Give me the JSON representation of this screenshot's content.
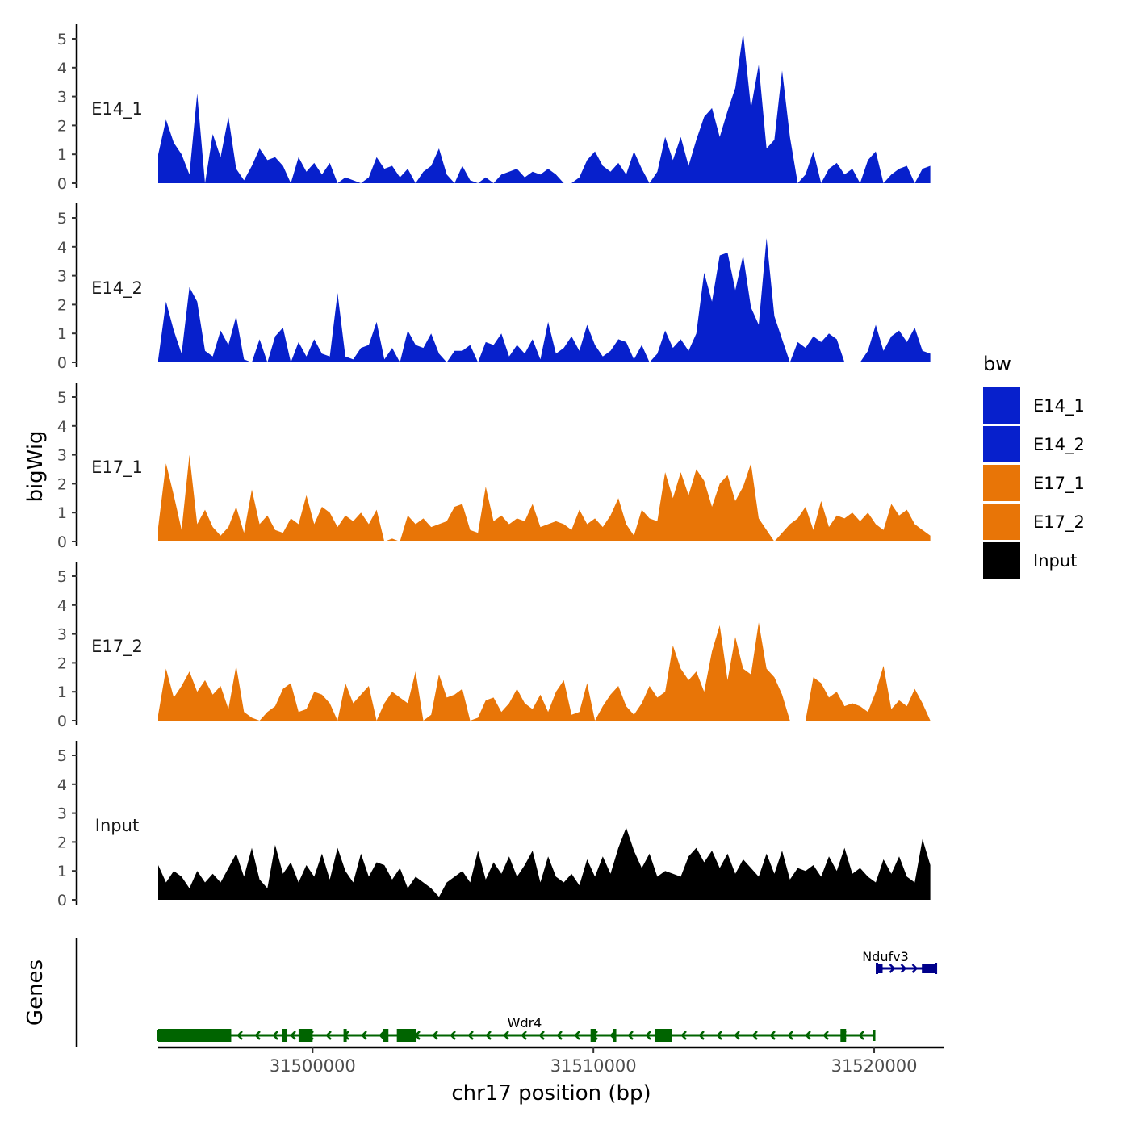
{
  "chart_data": {
    "type": "area",
    "title": "",
    "xlabel": "chr17 position (bp)",
    "ylabel": "bigWig",
    "genes_label": "Genes",
    "xlim": [
      31494500,
      31522500
    ],
    "ylim": [
      0,
      5.3
    ],
    "xticks": [
      31500000,
      31510000,
      31520000
    ],
    "xtick_labels": [
      "31500000",
      "31510000",
      "31520000"
    ],
    "yticks": [
      0,
      1,
      2,
      3,
      4,
      5
    ],
    "ytick_labels": [
      "0",
      "1",
      "2",
      "3",
      "4",
      "5"
    ],
    "legend": {
      "title": "bw",
      "position": "right",
      "entries": [
        {
          "label": "E14_1",
          "color": "#0720CC"
        },
        {
          "label": "E14_2",
          "color": "#0720CC"
        },
        {
          "label": "E17_1",
          "color": "#E87507"
        },
        {
          "label": "E17_2",
          "color": "#E87507"
        },
        {
          "label": "Input",
          "color": "#000000"
        }
      ]
    },
    "tracks": [
      {
        "name": "E14_1",
        "color": "#0720CC",
        "x_start": 31494500,
        "x_end": 31522000,
        "values": [
          1.0,
          2.2,
          1.4,
          1.0,
          0.3,
          3.1,
          0.0,
          1.7,
          0.9,
          2.3,
          0.5,
          0.1,
          0.6,
          1.2,
          0.8,
          0.9,
          0.6,
          0.0,
          0.9,
          0.4,
          0.7,
          0.3,
          0.7,
          0.0,
          0.2,
          0.1,
          0.0,
          0.2,
          0.9,
          0.5,
          0.6,
          0.2,
          0.5,
          0.0,
          0.4,
          0.6,
          1.2,
          0.3,
          0.0,
          0.6,
          0.1,
          0.0,
          0.2,
          0.0,
          0.3,
          0.4,
          0.5,
          0.2,
          0.4,
          0.3,
          0.5,
          0.3,
          0.0,
          0.0,
          0.2,
          0.8,
          1.1,
          0.6,
          0.4,
          0.7,
          0.3,
          1.1,
          0.5,
          0.0,
          0.4,
          1.6,
          0.8,
          1.6,
          0.6,
          1.5,
          2.3,
          2.6,
          1.6,
          2.5,
          3.3,
          5.2,
          2.6,
          4.1,
          1.2,
          1.5,
          3.9,
          1.6,
          0.0,
          0.3,
          1.1,
          0.0,
          0.5,
          0.7,
          0.3,
          0.5,
          0.0,
          0.8,
          1.1,
          0.0,
          0.3,
          0.5,
          0.6,
          0.0,
          0.5,
          0.6
        ]
      },
      {
        "name": "E14_2",
        "color": "#0720CC",
        "x_start": 31494500,
        "x_end": 31522000,
        "values": [
          0.1,
          2.1,
          1.1,
          0.3,
          2.6,
          2.1,
          0.4,
          0.2,
          1.1,
          0.6,
          1.6,
          0.1,
          0.0,
          0.8,
          0.0,
          0.9,
          1.2,
          0.0,
          0.7,
          0.2,
          0.8,
          0.3,
          0.2,
          2.4,
          0.2,
          0.1,
          0.5,
          0.6,
          1.4,
          0.1,
          0.5,
          0.0,
          1.1,
          0.6,
          0.5,
          1.0,
          0.3,
          0.0,
          0.4,
          0.4,
          0.6,
          0.0,
          0.7,
          0.6,
          1.0,
          0.2,
          0.6,
          0.3,
          0.8,
          0.1,
          1.4,
          0.3,
          0.5,
          0.9,
          0.4,
          1.3,
          0.6,
          0.2,
          0.4,
          0.8,
          0.7,
          0.1,
          0.6,
          0.0,
          0.3,
          1.1,
          0.5,
          0.8,
          0.4,
          1.0,
          3.1,
          2.1,
          3.7,
          3.8,
          2.5,
          3.7,
          1.9,
          1.3,
          4.3,
          1.6,
          0.8,
          0.0,
          0.7,
          0.5,
          0.9,
          0.7,
          1.0,
          0.8,
          0.0,
          0.0,
          0.0,
          0.4,
          1.3,
          0.4,
          0.9,
          1.1,
          0.7,
          1.2,
          0.4,
          0.3
        ]
      },
      {
        "name": "E17_1",
        "color": "#E87507",
        "x_start": 31494500,
        "x_end": 31522000,
        "values": [
          0.5,
          2.7,
          1.6,
          0.4,
          3.0,
          0.6,
          1.1,
          0.5,
          0.2,
          0.5,
          1.2,
          0.3,
          1.8,
          0.6,
          0.9,
          0.4,
          0.3,
          0.8,
          0.6,
          1.6,
          0.6,
          1.2,
          1.0,
          0.5,
          0.9,
          0.7,
          1.0,
          0.6,
          1.1,
          0.0,
          0.1,
          0.0,
          0.9,
          0.6,
          0.8,
          0.5,
          0.6,
          0.7,
          1.2,
          1.3,
          0.4,
          0.3,
          1.9,
          0.7,
          0.9,
          0.6,
          0.8,
          0.7,
          1.3,
          0.5,
          0.6,
          0.7,
          0.6,
          0.4,
          1.1,
          0.6,
          0.8,
          0.5,
          0.9,
          1.5,
          0.6,
          0.2,
          1.1,
          0.8,
          0.7,
          2.4,
          1.5,
          2.4,
          1.6,
          2.5,
          2.1,
          1.2,
          2.0,
          2.3,
          1.4,
          1.9,
          2.7,
          0.8,
          0.4,
          0.0,
          0.3,
          0.6,
          0.8,
          1.2,
          0.4,
          1.4,
          0.5,
          0.9,
          0.8,
          1.0,
          0.7,
          1.0,
          0.6,
          0.4,
          1.3,
          0.9,
          1.1,
          0.6,
          0.4,
          0.2
        ]
      },
      {
        "name": "E17_2",
        "color": "#E87507",
        "x_start": 31494500,
        "x_end": 31522000,
        "values": [
          0.2,
          1.8,
          0.8,
          1.2,
          1.7,
          1.0,
          1.4,
          0.9,
          1.2,
          0.4,
          1.9,
          0.3,
          0.1,
          0.0,
          0.3,
          0.5,
          1.1,
          1.3,
          0.3,
          0.4,
          1.0,
          0.9,
          0.6,
          0.0,
          1.3,
          0.6,
          0.9,
          1.2,
          0.0,
          0.6,
          1.0,
          0.8,
          0.6,
          1.7,
          0.0,
          0.2,
          1.6,
          0.8,
          0.9,
          1.1,
          0.0,
          0.1,
          0.7,
          0.8,
          0.3,
          0.6,
          1.1,
          0.6,
          0.4,
          0.9,
          0.3,
          1.0,
          1.4,
          0.2,
          0.3,
          1.3,
          0.0,
          0.5,
          0.9,
          1.2,
          0.5,
          0.2,
          0.6,
          1.2,
          0.8,
          1.0,
          2.6,
          1.8,
          1.4,
          1.7,
          1.0,
          2.4,
          3.3,
          1.4,
          2.9,
          1.8,
          1.6,
          3.4,
          1.8,
          1.5,
          0.9,
          0.0,
          0.0,
          0.0,
          1.5,
          1.3,
          0.8,
          1.0,
          0.5,
          0.6,
          0.5,
          0.3,
          1.0,
          1.9,
          0.4,
          0.7,
          0.5,
          1.1,
          0.6,
          0.0
        ]
      },
      {
        "name": "Input",
        "color": "#000000",
        "x_start": 31494500,
        "x_end": 31522000,
        "values": [
          1.2,
          0.6,
          1.0,
          0.8,
          0.4,
          1.0,
          0.6,
          0.9,
          0.6,
          1.1,
          1.6,
          0.8,
          1.8,
          0.7,
          0.4,
          1.9,
          0.9,
          1.3,
          0.6,
          1.2,
          0.8,
          1.6,
          0.7,
          1.8,
          1.0,
          0.6,
          1.6,
          0.8,
          1.3,
          1.2,
          0.7,
          1.1,
          0.4,
          0.8,
          0.6,
          0.4,
          0.1,
          0.6,
          0.8,
          1.0,
          0.6,
          1.7,
          0.7,
          1.3,
          0.9,
          1.5,
          0.8,
          1.2,
          1.7,
          0.6,
          1.5,
          0.8,
          0.6,
          0.9,
          0.5,
          1.4,
          0.8,
          1.5,
          0.9,
          1.8,
          2.5,
          1.7,
          1.1,
          1.6,
          0.8,
          1.0,
          0.9,
          0.8,
          1.5,
          1.8,
          1.3,
          1.7,
          1.1,
          1.6,
          0.9,
          1.4,
          1.1,
          0.8,
          1.6,
          0.9,
          1.7,
          0.7,
          1.1,
          1.0,
          1.2,
          0.8,
          1.5,
          1.0,
          1.8,
          0.9,
          1.1,
          0.8,
          0.6,
          1.4,
          0.9,
          1.5,
          0.8,
          0.6,
          2.1,
          1.2
        ]
      }
    ],
    "genes": [
      {
        "name": "Wdr4",
        "color": "#006400",
        "strand": "-",
        "start": 31494500,
        "end": 31520000,
        "exons": [
          [
            31494500,
            31497100
          ],
          [
            31498900,
            31499100
          ],
          [
            31499500,
            31500000
          ],
          [
            31501100,
            31501200
          ],
          [
            31502500,
            31502700
          ],
          [
            31503000,
            31503700
          ],
          [
            31509900,
            31510100
          ],
          [
            31510700,
            31510800
          ],
          [
            31512200,
            31512800
          ],
          [
            31518800,
            31519000
          ]
        ]
      },
      {
        "name": "Ndufv3",
        "color": "#00008B",
        "strand": "+",
        "start": 31520100,
        "end": 31522200,
        "exons": [
          [
            31520100,
            31520300
          ],
          [
            31521700,
            31522200
          ]
        ]
      }
    ]
  }
}
